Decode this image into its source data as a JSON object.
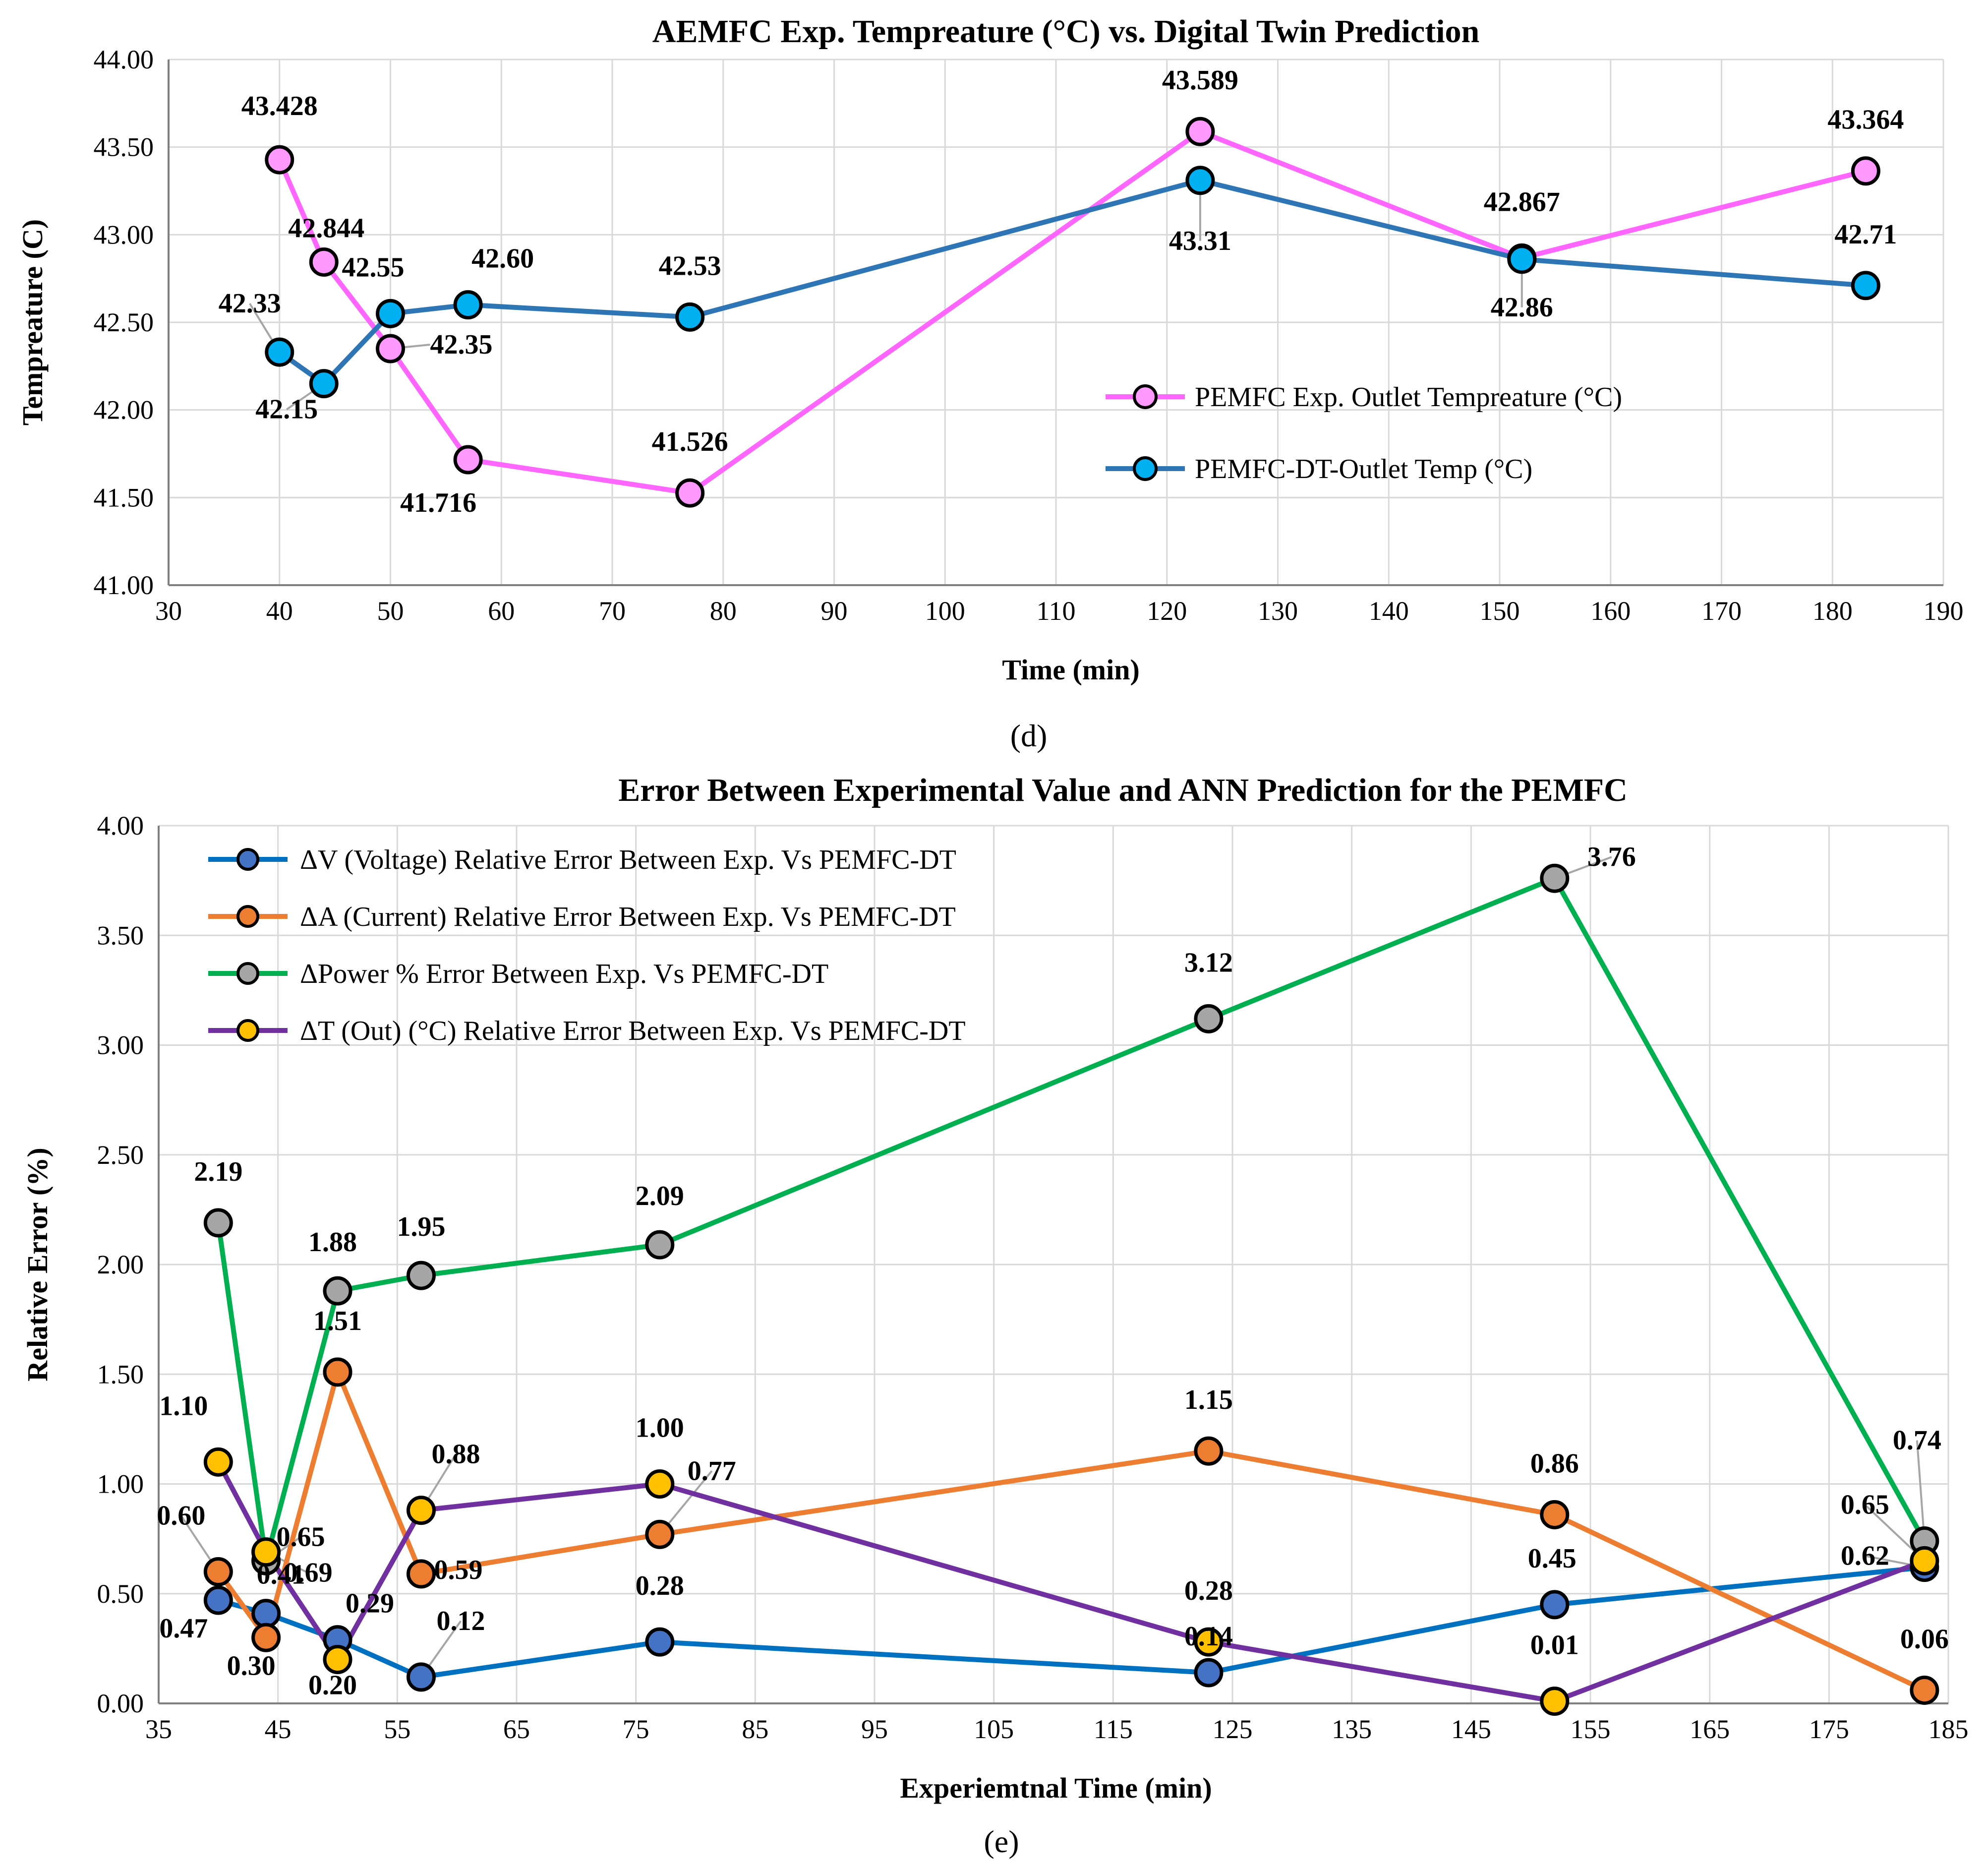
{
  "panels": [
    {
      "label": "(d)"
    },
    {
      "label": "(e)"
    }
  ],
  "chart_data": [
    {
      "type": "line",
      "title": "AEMFC Exp. Tempreature (°C) vs. Digital Twin Prediction",
      "xlabel": "Time (min)",
      "ylabel": "Tempreature (C)",
      "xlim": [
        30,
        190
      ],
      "ylim": [
        41.0,
        44.0
      ],
      "xticks": [
        30,
        40,
        50,
        60,
        70,
        80,
        90,
        100,
        110,
        120,
        130,
        140,
        150,
        160,
        170,
        180,
        190
      ],
      "yticks": [
        "41.00",
        "41.50",
        "42.00",
        "42.50",
        "43.00",
        "43.50",
        "44.00"
      ],
      "grid": true,
      "legend_position": "right-middle",
      "series": [
        {
          "name": "PEMFC Exp. Outlet Tempreature (°C)",
          "color": "#ff66ff",
          "marker_color": "#ff99ff",
          "x": [
            40,
            44,
            50,
            57,
            77,
            123,
            152,
            183
          ],
          "y": [
            43.428,
            42.844,
            42.35,
            41.716,
            41.526,
            43.589,
            42.867,
            43.364
          ],
          "labels": [
            "43.428",
            "42.844",
            "42.35",
            "41.716",
            "41.526",
            "43.589",
            "42.867",
            "43.364"
          ]
        },
        {
          "name": "PEMFC-DT-Outlet Temp (°C)",
          "color": "#2e75b6",
          "marker_color": "#00b0f0",
          "x": [
            40,
            44,
            50,
            57,
            77,
            123,
            152,
            183
          ],
          "y": [
            42.33,
            42.15,
            42.55,
            42.6,
            42.53,
            43.31,
            42.86,
            42.71
          ],
          "labels": [
            "42.33",
            "42.15",
            "42.55",
            "42.60",
            "42.53",
            "43.31",
            "42.86",
            "42.71"
          ]
        }
      ]
    },
    {
      "type": "line",
      "title": "Error Between Experimental Value and ANN Prediction for the PEMFC",
      "xlabel": "Experiemtnal Time (min)",
      "ylabel": "Relative Error (%)",
      "xlim": [
        35,
        185
      ],
      "ylim": [
        0,
        4.0
      ],
      "xticks": [
        35,
        45,
        55,
        65,
        75,
        85,
        95,
        105,
        115,
        125,
        135,
        145,
        155,
        165,
        175,
        185
      ],
      "yticks": [
        "0.00",
        "0.50",
        "1.00",
        "1.50",
        "2.00",
        "2.50",
        "3.00",
        "3.50",
        "4.00"
      ],
      "grid": true,
      "legend_position": "top-left",
      "series": [
        {
          "name": "ΔV (Voltage) Relative Error Between Exp. Vs PEMFC-DT",
          "color": "#0070c0",
          "marker_color": "#4472c4",
          "x": [
            40,
            44,
            50,
            57,
            77,
            123,
            152,
            183
          ],
          "y": [
            0.47,
            0.41,
            0.29,
            0.12,
            0.28,
            0.14,
            0.45,
            0.62
          ],
          "labels": [
            "0.47",
            "0.41",
            "0.29",
            "0.12",
            "0.28",
            "0.14",
            "0.45",
            "0.62"
          ]
        },
        {
          "name": "ΔA (Current) Relative Error Between Exp. Vs PEMFC-DT",
          "color": "#ed7d31",
          "marker_color": "#ed7d31",
          "x": [
            40,
            44,
            50,
            57,
            77,
            123,
            152,
            183
          ],
          "y": [
            0.6,
            0.3,
            1.51,
            0.59,
            0.77,
            1.15,
            0.86,
            0.06
          ],
          "labels": [
            "0.60",
            "0.30",
            "1.51",
            "0.59",
            "0.77",
            "1.15",
            "0.86",
            "0.06"
          ]
        },
        {
          "name": "ΔPower % Error Between Exp. Vs PEMFC-DT",
          "color": "#00b050",
          "marker_color": "#a6a6a6",
          "x": [
            40,
            44,
            50,
            57,
            77,
            123,
            152,
            183
          ],
          "y": [
            2.19,
            0.65,
            1.88,
            1.95,
            2.09,
            3.12,
            3.76,
            0.74
          ],
          "labels": [
            "2.19",
            "0.65",
            "1.88",
            "1.95",
            "2.09",
            "3.12",
            "3.76",
            "0.74"
          ]
        },
        {
          "name": "ΔT (Out) (°C) Relative Error Between Exp. Vs PEMFC-DT",
          "color": "#7030a0",
          "marker_color": "#ffc000",
          "x": [
            40,
            44,
            50,
            57,
            77,
            123,
            152,
            183
          ],
          "y": [
            1.1,
            0.69,
            0.2,
            0.88,
            1.0,
            0.28,
            0.01,
            0.65
          ],
          "labels": [
            "1.10",
            "0.69",
            "0.20",
            "0.88",
            "1.00",
            "0.28",
            "0.01",
            "0.65"
          ]
        }
      ]
    }
  ]
}
